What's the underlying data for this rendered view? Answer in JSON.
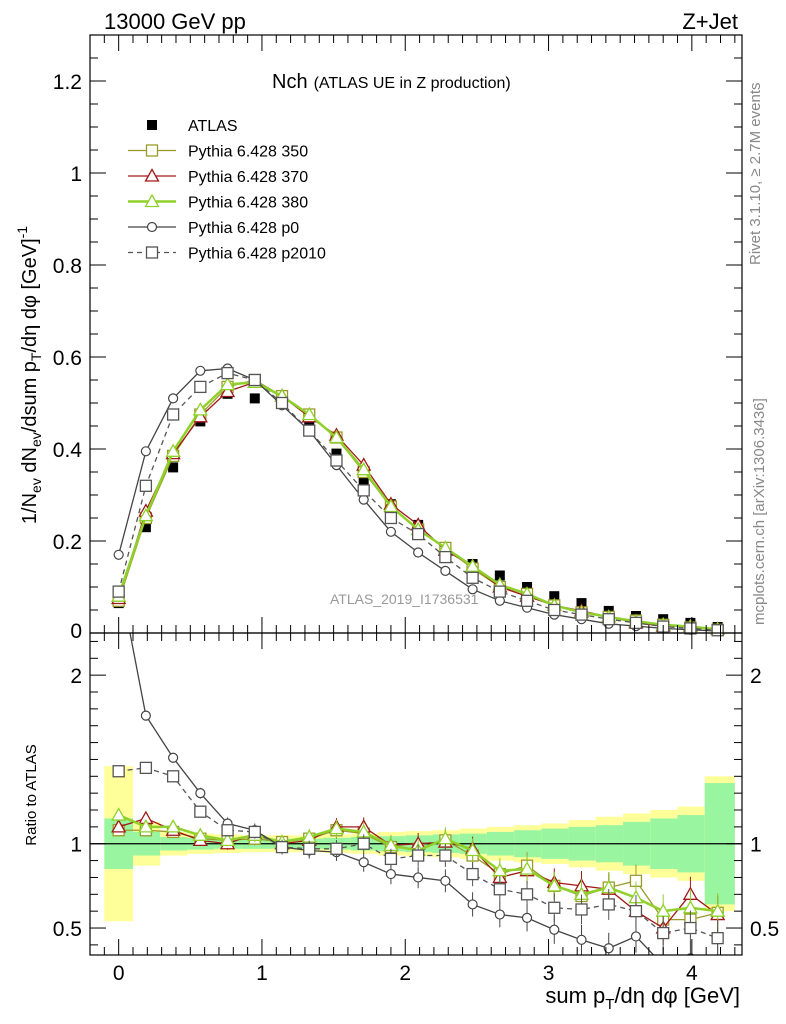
{
  "header": {
    "energy": "13000 GeV pp",
    "process": "Z+Jet"
  },
  "side_labels": {
    "rivet": "Rivet 3.1.10, ≥ 2.7M events",
    "mcplots": "mcplots.cern.ch [arXiv:1306.3436]"
  },
  "chart_data": [
    {
      "type": "scatter",
      "panel": "main",
      "title": "Nch",
      "subtitle": "(ATLAS UE in Z production)",
      "watermark": "ATLAS_2019_I1736531",
      "xlabel": "sum p_T/dη dφ [GeV]",
      "ylabel": "1/N_ev dN_ev/dsum p_T/dη dφ [GeV]^-1",
      "xlim": [
        -0.2,
        4.35
      ],
      "ylim": [
        0,
        1.3
      ],
      "yticks": [
        "0.2",
        "0.4",
        "0.6",
        "0.8",
        "1",
        "1.2"
      ],
      "y_zero_label": "0",
      "legend_position": "top-left",
      "x": [
        0.0,
        0.19,
        0.38,
        0.57,
        0.76,
        0.95,
        1.14,
        1.33,
        1.52,
        1.71,
        1.9,
        2.09,
        2.28,
        2.47,
        2.66,
        2.85,
        3.04,
        3.23,
        3.42,
        3.61,
        3.8,
        3.99,
        4.18
      ],
      "series": [
        {
          "name": "ATLAS",
          "marker": "filled-square",
          "color": "#000000",
          "values": [
            0.065,
            0.23,
            0.36,
            0.46,
            0.52,
            0.51,
            0.51,
            0.46,
            0.39,
            0.33,
            0.28,
            0.235,
            0.18,
            0.15,
            0.125,
            0.1,
            0.08,
            0.065,
            0.048,
            0.037,
            0.03,
            0.022,
            0.013
          ]
        },
        {
          "name": "Pythia 6.428 350",
          "marker": "open-square",
          "color": "#9a9a2a",
          "line": "solid",
          "values": [
            0.07,
            0.25,
            0.385,
            0.475,
            0.535,
            0.55,
            0.515,
            0.475,
            0.425,
            0.35,
            0.275,
            0.225,
            0.185,
            0.14,
            0.1,
            0.085,
            0.06,
            0.045,
            0.035,
            0.027,
            0.018,
            0.012,
            0.007
          ]
        },
        {
          "name": "Pythia 6.428 370",
          "marker": "open-triangle",
          "color": "#a01818",
          "line": "solid",
          "values": [
            0.075,
            0.265,
            0.39,
            0.47,
            0.525,
            0.545,
            0.515,
            0.47,
            0.43,
            0.365,
            0.28,
            0.235,
            0.18,
            0.145,
            0.1,
            0.08,
            0.06,
            0.048,
            0.035,
            0.022,
            0.015,
            0.015,
            0.008
          ]
        },
        {
          "name": "Pythia 6.428 380",
          "marker": "open-triangle",
          "color": "#8fd12a",
          "line": "solid",
          "width": 2.5,
          "values": [
            0.08,
            0.255,
            0.395,
            0.485,
            0.54,
            0.545,
            0.515,
            0.475,
            0.425,
            0.355,
            0.275,
            0.225,
            0.185,
            0.145,
            0.105,
            0.085,
            0.06,
            0.045,
            0.035,
            0.025,
            0.018,
            0.014,
            0.008
          ]
        },
        {
          "name": "Pythia 6.428 p0",
          "marker": "open-circle",
          "color": "#444444",
          "line": "solid",
          "values": [
            0.17,
            0.395,
            0.51,
            0.57,
            0.575,
            0.55,
            0.495,
            0.44,
            0.365,
            0.29,
            0.22,
            0.175,
            0.135,
            0.095,
            0.07,
            0.055,
            0.04,
            0.03,
            0.02,
            0.015,
            0.01,
            0.007,
            0.004
          ]
        },
        {
          "name": "Pythia 6.428 p2010",
          "marker": "open-square",
          "color": "#555555",
          "line": "dashed",
          "values": [
            0.09,
            0.32,
            0.475,
            0.535,
            0.565,
            0.55,
            0.5,
            0.44,
            0.375,
            0.31,
            0.25,
            0.215,
            0.165,
            0.12,
            0.09,
            0.07,
            0.05,
            0.04,
            0.03,
            0.022,
            0.014,
            0.01,
            0.006
          ]
        }
      ]
    },
    {
      "type": "line",
      "panel": "ratio",
      "ylabel": "Ratio to ATLAS",
      "xlim": [
        -0.2,
        4.35
      ],
      "ylim": [
        0.34,
        2.25
      ],
      "yticks": [
        "0.5",
        "1",
        "2"
      ],
      "xticks": [
        "0",
        "1",
        "2",
        "3",
        "4"
      ],
      "x": [
        0.0,
        0.19,
        0.38,
        0.57,
        0.76,
        0.95,
        1.14,
        1.33,
        1.52,
        1.71,
        1.9,
        2.09,
        2.28,
        2.47,
        2.66,
        2.85,
        3.04,
        3.23,
        3.42,
        3.61,
        3.8,
        3.99,
        4.18
      ],
      "bin_edges": [
        -0.1,
        0.1,
        0.29,
        0.48,
        0.67,
        0.86,
        1.05,
        1.24,
        1.43,
        1.62,
        1.81,
        2.0,
        2.19,
        2.38,
        2.57,
        2.76,
        2.95,
        3.14,
        3.33,
        3.52,
        3.71,
        3.9,
        4.09,
        4.3
      ],
      "bands": {
        "yellow_half_width": [
          0.46,
          0.13,
          0.07,
          0.06,
          0.055,
          0.05,
          0.05,
          0.05,
          0.055,
          0.06,
          0.07,
          0.075,
          0.08,
          0.09,
          0.1,
          0.11,
          0.12,
          0.14,
          0.16,
          0.18,
          0.2,
          0.22,
          0.4
        ],
        "green_half_width": [
          0.15,
          0.07,
          0.04,
          0.035,
          0.03,
          0.03,
          0.03,
          0.03,
          0.035,
          0.04,
          0.045,
          0.05,
          0.055,
          0.06,
          0.07,
          0.08,
          0.09,
          0.1,
          0.11,
          0.13,
          0.15,
          0.17,
          0.36
        ]
      },
      "series": [
        {
          "name": "Pythia 6.428 350",
          "values": [
            1.08,
            1.08,
            1.07,
            1.03,
            1.02,
            1.03,
            1.01,
            1.03,
            1.08,
            1.06,
            0.98,
            0.97,
            1.02,
            0.93,
            0.82,
            0.87,
            0.75,
            0.69,
            0.74,
            0.78,
            0.55,
            0.55,
            0.59
          ]
        },
        {
          "name": "Pythia 6.428 370",
          "values": [
            1.1,
            1.15,
            1.08,
            1.02,
            1.0,
            1.06,
            1.0,
            1.02,
            1.1,
            1.1,
            0.99,
            1.0,
            1.01,
            0.97,
            0.8,
            0.84,
            0.77,
            0.75,
            0.73,
            0.6,
            0.5,
            0.7,
            0.58
          ]
        },
        {
          "name": "Pythia 6.428 380",
          "values": [
            1.17,
            1.1,
            1.1,
            1.05,
            1.02,
            1.05,
            1.01,
            1.04,
            1.09,
            1.07,
            0.99,
            0.96,
            1.03,
            0.96,
            0.84,
            0.85,
            0.75,
            0.7,
            0.74,
            0.68,
            0.6,
            0.62,
            0.6
          ]
        },
        {
          "name": "Pythia 6.428 p0",
          "values": [
            2.6,
            1.76,
            1.51,
            1.3,
            1.12,
            1.08,
            0.98,
            0.96,
            0.95,
            0.89,
            0.82,
            0.8,
            0.78,
            0.64,
            0.58,
            0.56,
            0.49,
            0.43,
            0.38,
            0.45,
            0.28,
            0.32,
            0.3
          ]
        },
        {
          "name": "Pythia 6.428 p2010",
          "values": [
            1.43,
            1.45,
            1.4,
            1.19,
            1.08,
            1.07,
            0.98,
            0.97,
            0.97,
            1.0,
            0.91,
            0.93,
            0.93,
            0.82,
            0.73,
            0.7,
            0.62,
            0.61,
            0.64,
            0.6,
            0.47,
            0.5,
            0.44
          ]
        }
      ]
    }
  ]
}
